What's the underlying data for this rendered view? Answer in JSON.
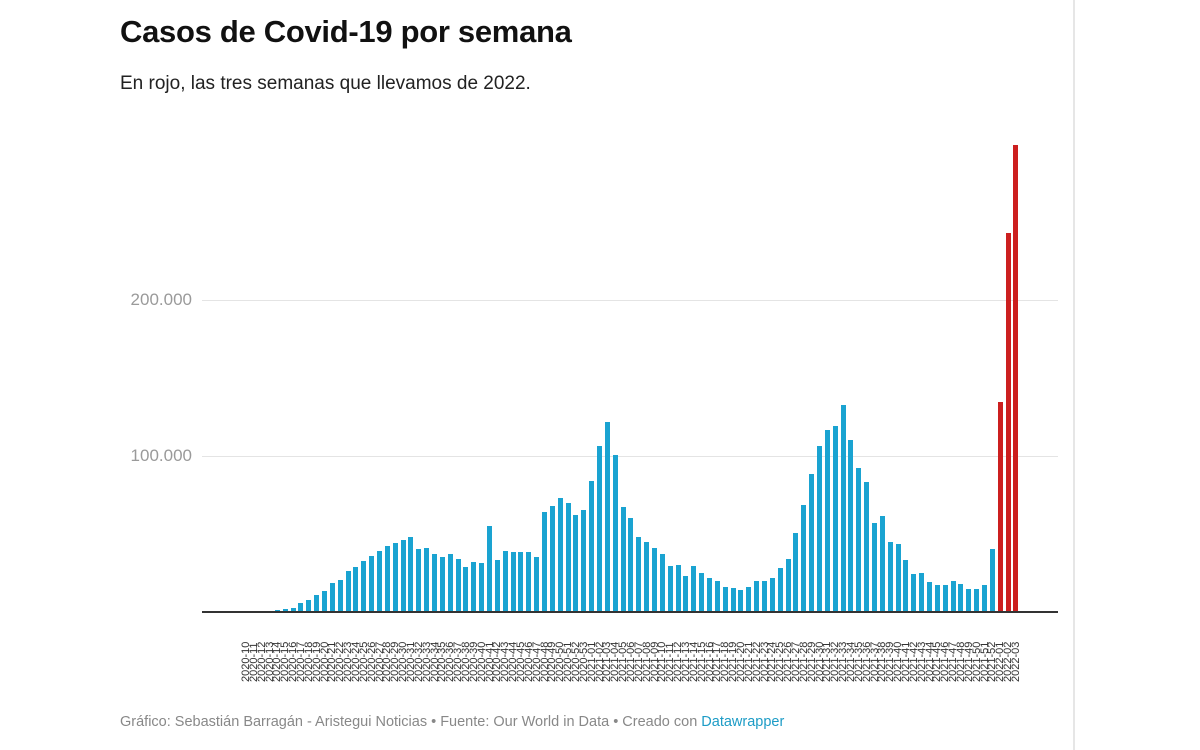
{
  "header": {
    "title": "Casos de Covid-19 por semana",
    "subtitle": "En rojo, las tres semanas que llevamos de 2022."
  },
  "footer": {
    "credit": "Gráfico: Sebastián Barragán - Aristegui Noticias • Fuente: Our World in Data • Creado con ",
    "link_label": "Datawrapper"
  },
  "colors": {
    "bar_default": "#1aa3d1",
    "bar_highlight": "#cc1f1f",
    "link": "#1d9cc6"
  },
  "y_ticks": [
    {
      "label": "200.000",
      "value": 200000
    },
    {
      "label": "100.000",
      "value": 100000
    }
  ],
  "chart_data": {
    "type": "bar",
    "title": "Casos de Covid-19 por semana",
    "subtitle": "En rojo, las tres semanas que llevamos de 2022.",
    "xlabel": "",
    "ylabel": "",
    "ylim": [
      0,
      300000
    ],
    "grid": true,
    "y_tick_values": [
      100000,
      200000
    ],
    "y_tick_labels": [
      "100.000",
      "200.000"
    ],
    "highlight": {
      "color": "#cc1f1f",
      "categories": [
        "2022-01",
        "2022-02",
        "2022-03"
      ],
      "note": "En rojo, las tres semanas de 2022"
    },
    "categories": [
      "2020-10",
      "2020-11",
      "2020-12",
      "2020-13",
      "2020-14",
      "2020-15",
      "2020-16",
      "2020-17",
      "2020-18",
      "2020-19",
      "2020-20",
      "2020-21",
      "2020-22",
      "2020-23",
      "2020-24",
      "2020-25",
      "2020-26",
      "2020-27",
      "2020-28",
      "2020-29",
      "2020-30",
      "2020-31",
      "2020-32",
      "2020-33",
      "2020-34",
      "2020-35",
      "2020-36",
      "2020-37",
      "2020-38",
      "2020-39",
      "2020-40",
      "2020-41",
      "2020-42",
      "2020-43",
      "2020-44",
      "2020-45",
      "2020-46",
      "2020-47",
      "2020-48",
      "2020-49",
      "2020-50",
      "2020-51",
      "2020-52",
      "2020-53",
      "2021-01",
      "2021-02",
      "2021-03",
      "2021-04",
      "2021-05",
      "2021-06",
      "2021-07",
      "2021-08",
      "2021-09",
      "2021-10",
      "2021-11",
      "2021-12",
      "2021-13",
      "2021-14",
      "2021-15",
      "2021-16",
      "2021-17",
      "2021-18",
      "2021-19",
      "2021-20",
      "2021-21",
      "2021-22",
      "2021-23",
      "2021-24",
      "2021-25",
      "2021-26",
      "2021-27",
      "2021-28",
      "2021-29",
      "2021-30",
      "2021-31",
      "2021-32",
      "2021-33",
      "2021-34",
      "2021-35",
      "2021-36",
      "2021-37",
      "2021-38",
      "2021-39",
      "2021-40",
      "2021-41",
      "2021-42",
      "2021-43",
      "2021-44",
      "2021-45",
      "2021-46",
      "2021-47",
      "2021-48",
      "2021-49",
      "2021-50",
      "2021-51",
      "2021-52",
      "2022-01",
      "2022-02",
      "2022-03"
    ],
    "values": [
      0,
      0,
      0,
      0,
      1300,
      1900,
      2600,
      5800,
      7700,
      10900,
      13500,
      18600,
      20500,
      26300,
      28800,
      32700,
      35900,
      39100,
      42300,
      44200,
      46200,
      48100,
      40400,
      41000,
      37200,
      35300,
      37200,
      34000,
      28800,
      32100,
      31400,
      55100,
      33300,
      39100,
      38500,
      38500,
      38500,
      35300,
      64100,
      67900,
      73100,
      69900,
      62200,
      65400,
      84000,
      106400,
      121800,
      100600,
      67300,
      60300,
      48100,
      44900,
      41000,
      37200,
      29500,
      30100,
      23100,
      29500,
      25000,
      21800,
      19900,
      16000,
      15400,
      14100,
      16000,
      19900,
      19900,
      21800,
      28200,
      34000,
      50600,
      68600,
      88500,
      106400,
      116700,
      119200,
      132700,
      110300,
      92300,
      83300,
      57100,
      61500,
      44900,
      43600,
      33300,
      24400,
      25000,
      19200,
      17300,
      17300,
      19900,
      17900,
      14700,
      14700,
      17300,
      40400,
      134600,
      243000,
      299400
    ]
  }
}
